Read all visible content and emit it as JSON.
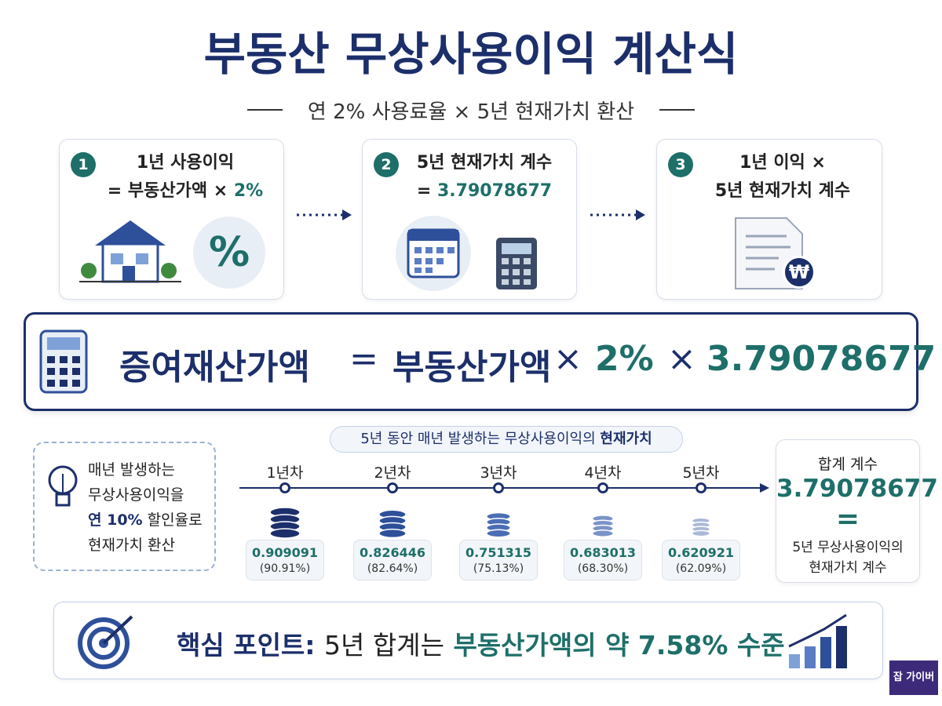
{
  "header": {
    "title": "부동산 무상사용이익 계산식",
    "subtitle": "연 2% 사용료율 × 5년 현재가치 환산"
  },
  "steps": [
    {
      "number": "1",
      "line1": "1년 사용이익",
      "line2": "= 부동산가액 ×",
      "highlight": "2%",
      "icon_text": "%"
    },
    {
      "number": "2",
      "line1": "5년 현재가치 계수",
      "line2": "=",
      "highlight": "3.79078677"
    },
    {
      "number": "3",
      "line1": "1년 이익 ×",
      "line2": "5년 현재가치 계수",
      "icon_text": "₩"
    }
  ],
  "formula": {
    "result": "증여재산가액",
    "equals": "=",
    "base": "부동산가액",
    "times1": "×",
    "rate": "2%",
    "times2": "×",
    "factor": "3.79078677"
  },
  "note": {
    "line1": "매년 발생하는",
    "line2": "무상사용이익을",
    "line3_highlight": "연 10%",
    "line3": "할인율로",
    "line4": "현재가치 환산"
  },
  "timeline": {
    "title": "5년 동안 매년 발생하는 무상사용이익의",
    "title_bold": "현재가치",
    "years": [
      {
        "label": "1년차",
        "factor": "0.909091",
        "percent": "(90.91%)"
      },
      {
        "label": "2년차",
        "factor": "0.826446",
        "percent": "(82.64%)"
      },
      {
        "label": "3년차",
        "factor": "0.751315",
        "percent": "(75.13%)"
      },
      {
        "label": "4년차",
        "factor": "0.683013",
        "percent": "(68.30%)"
      },
      {
        "label": "5년차",
        "factor": "0.620921",
        "percent": "(62.09%)"
      }
    ]
  },
  "sum": {
    "label": "합계 계수",
    "value": "3.79078677",
    "equals": "=",
    "desc1": "5년 무상사용이익의",
    "desc2": "현재가치 계수"
  },
  "key_point": {
    "label": "핵심 포인트:",
    "text": "5년 합계는",
    "highlight": "부동산가액의 약 7.58% 수준"
  },
  "badge": {
    "text": "잡 가이버"
  }
}
